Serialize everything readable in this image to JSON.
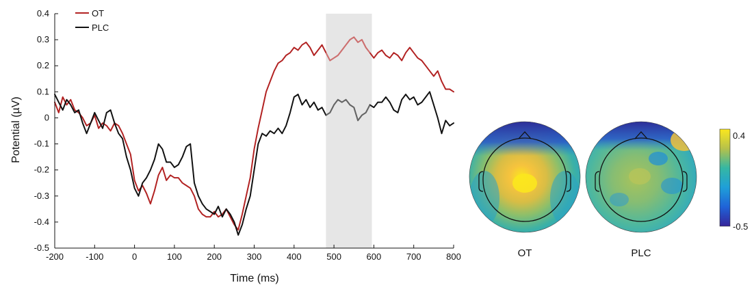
{
  "chart_data": [
    {
      "type": "line",
      "xlabel": "Time (ms)",
      "ylabel": "Potential (µV)",
      "xlim": [
        -200,
        800
      ],
      "ylim": [
        -0.5,
        0.4
      ],
      "x_ticks": [
        "-200",
        "-100",
        "0",
        "100",
        "200",
        "300",
        "400",
        "500",
        "600",
        "700",
        "800"
      ],
      "y_ticks": [
        "0.4",
        "0.3",
        "0.2",
        "0.1",
        "0",
        "-0.1",
        "-0.2",
        "-0.3",
        "-0.4",
        "-0.5"
      ],
      "highlight_window": [
        480,
        595
      ],
      "legend_position": "top-left",
      "series": [
        {
          "name": "OT",
          "color": "#b22222",
          "x": [
            -200,
            -190,
            -180,
            -170,
            -160,
            -150,
            -140,
            -130,
            -120,
            -110,
            -100,
            -90,
            -80,
            -70,
            -60,
            -50,
            -40,
            -30,
            -20,
            -10,
            0,
            10,
            20,
            30,
            40,
            50,
            60,
            70,
            80,
            90,
            100,
            110,
            120,
            130,
            140,
            150,
            160,
            170,
            180,
            190,
            200,
            210,
            220,
            230,
            240,
            250,
            260,
            270,
            280,
            290,
            300,
            310,
            320,
            330,
            340,
            350,
            360,
            370,
            380,
            390,
            400,
            410,
            420,
            430,
            440,
            450,
            460,
            470,
            480,
            490,
            500,
            510,
            520,
            530,
            540,
            550,
            560,
            570,
            580,
            590,
            600,
            610,
            620,
            630,
            640,
            650,
            660,
            670,
            680,
            690,
            700,
            710,
            720,
            730,
            740,
            750,
            760,
            770,
            780,
            790,
            800
          ],
          "values": [
            0.06,
            0.02,
            0.08,
            0.05,
            0.07,
            0.03,
            0.02,
            0.0,
            -0.03,
            -0.02,
            0.01,
            -0.04,
            -0.02,
            -0.03,
            -0.05,
            -0.02,
            -0.03,
            -0.06,
            -0.1,
            -0.14,
            -0.24,
            -0.28,
            -0.26,
            -0.29,
            -0.33,
            -0.28,
            -0.22,
            -0.19,
            -0.24,
            -0.22,
            -0.23,
            -0.23,
            -0.25,
            -0.26,
            -0.27,
            -0.3,
            -0.35,
            -0.37,
            -0.38,
            -0.38,
            -0.36,
            -0.38,
            -0.37,
            -0.35,
            -0.38,
            -0.41,
            -0.43,
            -0.37,
            -0.3,
            -0.23,
            -0.12,
            -0.04,
            0.03,
            0.1,
            0.14,
            0.18,
            0.21,
            0.22,
            0.24,
            0.25,
            0.27,
            0.26,
            0.28,
            0.29,
            0.27,
            0.24,
            0.26,
            0.28,
            0.25,
            0.22,
            0.23,
            0.24,
            0.26,
            0.28,
            0.3,
            0.31,
            0.29,
            0.3,
            0.27,
            0.25,
            0.23,
            0.25,
            0.26,
            0.24,
            0.23,
            0.25,
            0.24,
            0.22,
            0.25,
            0.27,
            0.25,
            0.23,
            0.22,
            0.2,
            0.18,
            0.16,
            0.18,
            0.14,
            0.11,
            0.11,
            0.1
          ]
        },
        {
          "name": "PLC",
          "color": "#111111",
          "x": [
            -200,
            -190,
            -180,
            -170,
            -160,
            -150,
            -140,
            -130,
            -120,
            -110,
            -100,
            -90,
            -80,
            -70,
            -60,
            -50,
            -40,
            -30,
            -20,
            -10,
            0,
            10,
            20,
            30,
            40,
            50,
            60,
            70,
            80,
            90,
            100,
            110,
            120,
            130,
            140,
            150,
            160,
            170,
            180,
            190,
            200,
            210,
            220,
            230,
            240,
            250,
            260,
            270,
            280,
            290,
            300,
            310,
            320,
            330,
            340,
            350,
            360,
            370,
            380,
            390,
            400,
            410,
            420,
            430,
            440,
            450,
            460,
            470,
            480,
            490,
            500,
            510,
            520,
            530,
            540,
            550,
            560,
            570,
            580,
            590,
            600,
            610,
            620,
            630,
            640,
            650,
            660,
            670,
            680,
            690,
            700,
            710,
            720,
            730,
            740,
            750,
            760,
            770,
            780,
            790,
            800
          ],
          "values": [
            0.09,
            0.06,
            0.03,
            0.07,
            0.05,
            0.02,
            0.03,
            -0.02,
            -0.06,
            -0.02,
            0.02,
            -0.01,
            -0.04,
            0.02,
            0.03,
            -0.02,
            -0.06,
            -0.08,
            -0.15,
            -0.2,
            -0.27,
            -0.3,
            -0.25,
            -0.23,
            -0.2,
            -0.16,
            -0.1,
            -0.12,
            -0.17,
            -0.17,
            -0.19,
            -0.18,
            -0.15,
            -0.11,
            -0.1,
            -0.25,
            -0.3,
            -0.33,
            -0.35,
            -0.36,
            -0.37,
            -0.34,
            -0.38,
            -0.35,
            -0.37,
            -0.4,
            -0.45,
            -0.41,
            -0.35,
            -0.3,
            -0.2,
            -0.1,
            -0.06,
            -0.07,
            -0.05,
            -0.06,
            -0.04,
            -0.06,
            -0.03,
            0.02,
            0.08,
            0.09,
            0.05,
            0.07,
            0.04,
            0.06,
            0.03,
            0.04,
            0.01,
            0.02,
            0.05,
            0.07,
            0.06,
            0.07,
            0.05,
            0.04,
            -0.01,
            0.01,
            0.02,
            0.05,
            0.04,
            0.06,
            0.06,
            0.08,
            0.06,
            0.03,
            0.02,
            0.07,
            0.09,
            0.07,
            0.08,
            0.05,
            0.06,
            0.08,
            0.1,
            0.05,
            0.0,
            -0.06,
            -0.01,
            -0.03,
            -0.02
          ]
        }
      ]
    },
    {
      "type": "heatmap",
      "labels": [
        "OT",
        "PLC"
      ],
      "colorbar": {
        "max_label": "0.4",
        "min_label": "-0.5",
        "range": [
          -0.5,
          0.4
        ]
      }
    }
  ]
}
